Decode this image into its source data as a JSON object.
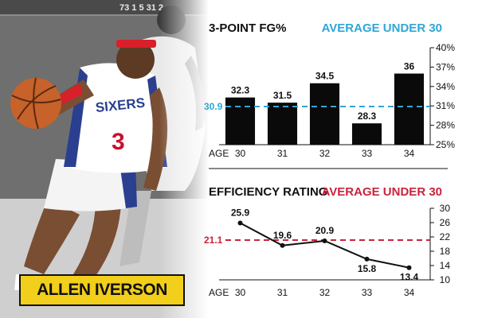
{
  "banner_text": "73 1 5 31 2",
  "player": {
    "jersey_text": "SIXERS",
    "jersey_number": "3",
    "name": "ALLEN IVERSON"
  },
  "colors": {
    "bar": "#0a0a0a",
    "avg_fg": "#2fa6d6",
    "avg_eff": "#c8243c",
    "nameplate": "#f2cf1b",
    "jersey": "#ffffff",
    "jersey_trim": "#c8102e",
    "jersey_blue": "#2a3f8f"
  },
  "chart_data": [
    {
      "type": "bar",
      "title": "3-POINT FG%",
      "reference_label": "AVERAGE UNDER 30",
      "reference_value": 30.9,
      "reference_value_label": "30.9",
      "x_axis_label": "AGE",
      "categories": [
        "30",
        "31",
        "32",
        "33",
        "34"
      ],
      "values": [
        32.3,
        31.5,
        34.5,
        28.3,
        36
      ],
      "value_labels": [
        "32.3",
        "31.5",
        "34.5",
        "28.3",
        "36"
      ],
      "ylim": [
        25,
        40
      ],
      "y_ticks": [
        25,
        28,
        31,
        34,
        37,
        40
      ],
      "y_tick_labels": [
        "25%",
        "28%",
        "31%",
        "34%",
        "37%",
        "40%"
      ],
      "y_axis_position": "right"
    },
    {
      "type": "line",
      "title": "EFFICIENCY RATING",
      "reference_label": "AVERAGE UNDER 30",
      "reference_value": 21.1,
      "reference_value_label": "21.1",
      "x_axis_label": "AGE",
      "categories": [
        "30",
        "31",
        "32",
        "33",
        "34"
      ],
      "values": [
        25.9,
        19.6,
        20.9,
        15.8,
        13.4
      ],
      "value_labels": [
        "25.9",
        "19.6",
        "20.9",
        "15.8",
        "13.4"
      ],
      "ylim": [
        10,
        30
      ],
      "y_ticks": [
        10,
        14,
        18,
        22,
        26,
        30
      ],
      "y_tick_labels": [
        "10",
        "14",
        "18",
        "22",
        "26",
        "30"
      ],
      "y_axis_position": "right"
    }
  ]
}
